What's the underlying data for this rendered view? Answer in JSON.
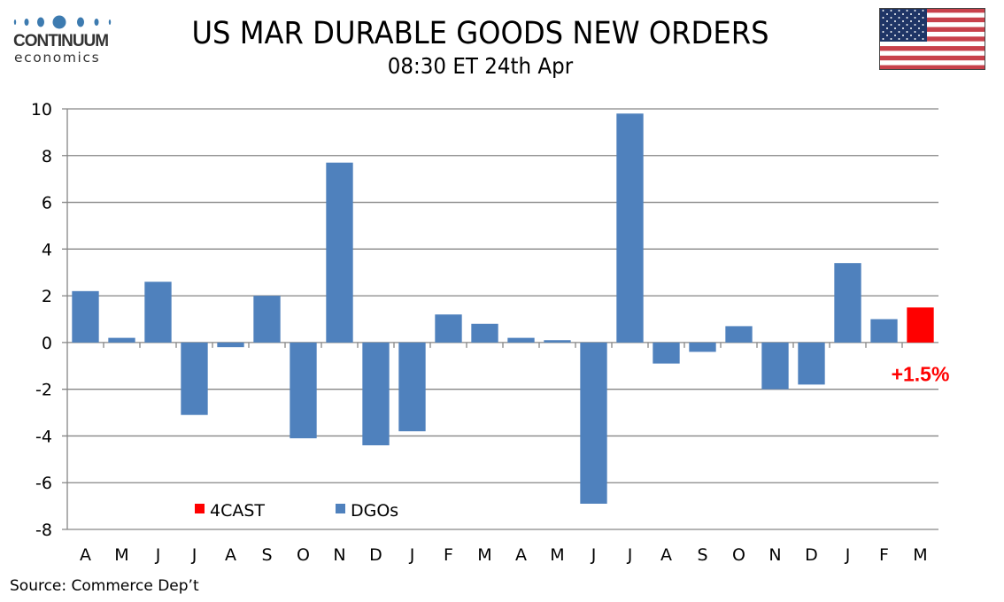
{
  "header": {
    "logo_word": "CONTINUUM",
    "logo_sub": "economics",
    "title": "US MAR DURABLE GOODS NEW ORDERS",
    "subtitle": "08:30 ET 24th Apr",
    "flag_icon": "us-flag-icon"
  },
  "footer": {
    "source": "Source: Commerce Dep’t"
  },
  "colors": {
    "dgos": "#4f81bd",
    "forecast": "#ff0000",
    "grid": "#868686"
  },
  "chart_data": {
    "type": "bar",
    "title": "US MAR DURABLE GOODS NEW ORDERS",
    "subtitle": "08:30 ET 24th Apr",
    "xlabel": "",
    "ylabel": "",
    "ylim": [
      -8,
      10
    ],
    "yticks": [
      10,
      8,
      6,
      4,
      2,
      0,
      -2,
      -4,
      -6,
      -8
    ],
    "grid": true,
    "categories": [
      "A",
      "M",
      "J",
      "J",
      "A",
      "S",
      "O",
      "N",
      "D",
      "J",
      "F",
      "M",
      "A",
      "M",
      "J",
      "J",
      "A",
      "S",
      "O",
      "N",
      "D",
      "J",
      "F",
      "M"
    ],
    "series": [
      {
        "name": "DGOs",
        "values": [
          2.2,
          0.2,
          2.6,
          -3.1,
          -0.2,
          2.0,
          -4.1,
          7.7,
          -4.4,
          -3.8,
          1.2,
          0.8,
          0.2,
          0.1,
          -6.9,
          9.8,
          -0.9,
          -0.4,
          0.7,
          -2.0,
          -1.8,
          3.4,
          1.0,
          null
        ]
      },
      {
        "name": "4CAST",
        "values": [
          null,
          null,
          null,
          null,
          null,
          null,
          null,
          null,
          null,
          null,
          null,
          null,
          null,
          null,
          null,
          null,
          null,
          null,
          null,
          null,
          null,
          null,
          null,
          1.5
        ]
      }
    ],
    "legend": [
      {
        "name": "4CAST",
        "color": "#ff0000"
      },
      {
        "name": "DGOs",
        "color": "#4f81bd"
      }
    ],
    "legend_placement": "bottom-left inside plot",
    "annotations": [
      {
        "text": "+1.5%",
        "category_index": 23,
        "color": "#ff0000"
      }
    ]
  }
}
